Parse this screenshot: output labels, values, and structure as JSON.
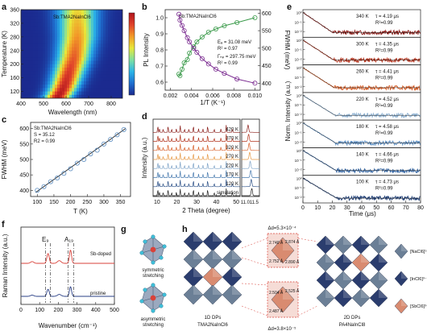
{
  "panel_letters": [
    "a",
    "b",
    "c",
    "d",
    "e",
    "f",
    "g",
    "h"
  ],
  "chart_data": [
    {
      "panel": "a",
      "type": "heatmap",
      "annotation": "Sb:TMA2NaInCl6",
      "xlabel": "Wavelength (nm)",
      "ylabel": "Temperature (K)",
      "xlim": [
        400,
        850
      ],
      "ylim": [
        100,
        360
      ],
      "xticks": [
        400,
        500,
        600,
        700,
        800
      ],
      "yticks": [
        120,
        160,
        200,
        240,
        280,
        320,
        360
      ],
      "peak_nm": [
        560,
        580,
        595,
        605,
        615,
        625,
        635,
        640,
        645,
        650,
        650,
        650,
        650,
        650
      ],
      "peak_T": [
        100,
        120,
        140,
        160,
        180,
        200,
        220,
        240,
        260,
        280,
        300,
        320,
        340,
        360
      ],
      "colormap": [
        "#1b2a8f",
        "#1e6fd0",
        "#2bb5e8",
        "#7fe0a0",
        "#e8e83a",
        "#f29a28",
        "#e0412a",
        "#b0141c"
      ]
    },
    {
      "panel": "b",
      "type": "scatter",
      "annotation": "Sb:TMA2NaInCl6",
      "xlabel": "1/T (K⁻¹)",
      "ylabel": "PL Intensity",
      "ylabel_right": "FWHM (meV)",
      "xlim": [
        0.0015,
        0.0105
      ],
      "ylim": [
        0.55,
        1.05
      ],
      "ylim_right": [
        380,
        610
      ],
      "xticks": [
        "0.002",
        "0.004",
        "0.006",
        "0.008",
        "0.010"
      ],
      "yticks": [
        "0.6",
        "0.7",
        "0.8",
        "0.9",
        "1.0"
      ],
      "yticks_right": [
        "400",
        "450",
        "500",
        "550",
        "600"
      ],
      "fit_left": [
        "Eₐ = 31.08 meV",
        "R² = 0.97"
      ],
      "fit_right": [
        "Γₙₚ = 297.75 meV",
        "R² = 0.99"
      ],
      "series": [
        {
          "name": "PL Intensity",
          "axis": "left",
          "color": "#3a9a4a",
          "x": [
            0.0028,
            0.0029,
            0.0031,
            0.0033,
            0.0036,
            0.0038,
            0.0042,
            0.0045,
            0.005,
            0.0056,
            0.0063,
            0.0071,
            0.0083,
            0.01
          ],
          "y": [
            0.65,
            0.64,
            0.68,
            0.72,
            0.74,
            0.78,
            0.82,
            0.85,
            0.88,
            0.91,
            0.93,
            0.95,
            0.97,
            1.0
          ]
        },
        {
          "name": "FWHM",
          "axis": "right",
          "color": "#7a2a90",
          "x": [
            0.0028,
            0.0029,
            0.0031,
            0.0033,
            0.0036,
            0.0038,
            0.0042,
            0.0045,
            0.005,
            0.0056,
            0.0063,
            0.0071,
            0.0083,
            0.01
          ],
          "y": [
            597,
            580,
            565,
            550,
            530,
            518,
            500,
            488,
            470,
            455,
            440,
            428,
            412,
            400
          ]
        }
      ]
    },
    {
      "panel": "c",
      "type": "scatter",
      "annotation": [
        "Sb:TMA2NaInCl6",
        "S = 35.12",
        "R2 = 0.99"
      ],
      "xlabel": "T (K)",
      "ylabel": "FWHM (meV)",
      "xlim": [
        80,
        380
      ],
      "ylim": [
        380,
        620
      ],
      "xticks": [
        100,
        150,
        200,
        250,
        300,
        350
      ],
      "yticks": [
        400,
        450,
        500,
        550,
        600
      ],
      "x": [
        100,
        120,
        140,
        160,
        180,
        200,
        220,
        240,
        260,
        280,
        300,
        320,
        340,
        360
      ],
      "y": [
        400,
        412,
        428,
        440,
        455,
        470,
        488,
        500,
        518,
        530,
        550,
        565,
        580,
        597
      ]
    },
    {
      "panel": "d",
      "type": "line",
      "xlabel": "2 Theta (degree)",
      "ylabel": "Intensity (a.u.)",
      "xticks": [
        10,
        20,
        30,
        40,
        50
      ],
      "xticks_inset": [
        "11.0",
        "11.5"
      ],
      "series": [
        {
          "name": "420 K",
          "color": "#8a1c18"
        },
        {
          "name": "370 K",
          "color": "#b3341e"
        },
        {
          "name": "320 K",
          "color": "#d8602a"
        },
        {
          "name": "270 K",
          "color": "#e69a48"
        },
        {
          "name": "220 K",
          "color": "#7fa4c8"
        },
        {
          "name": "170 K",
          "color": "#4a7cb0"
        },
        {
          "name": "120 K",
          "color": "#2a4f86"
        },
        {
          "name": "simulation",
          "color": "#222222"
        }
      ],
      "peaks": [
        10.4,
        11.2,
        13.1,
        15.6,
        17.4,
        19.8,
        21.7,
        23.9,
        26.1,
        28.4,
        31.0,
        33.2,
        35.6,
        38.9,
        42.3,
        45.0,
        48.1
      ]
    },
    {
      "panel": "e",
      "type": "line",
      "xlabel": "Time (μs)",
      "ylabel": "Norm. Intensity (a.u.)",
      "xlim": [
        0,
        80
      ],
      "xticks": [
        0,
        10,
        20,
        30,
        40,
        50,
        60,
        70,
        80
      ],
      "yticks": [
        "10⁰",
        "10⁻¹",
        "10⁻²"
      ],
      "series": [
        {
          "name": "340 K",
          "tau": "τ = 4.19 μs",
          "r2": "R²=0.99",
          "tau_us": 4.19,
          "color": "#8a1c18"
        },
        {
          "name": "300 K",
          "tau": "τ = 4.35 μs",
          "r2": "R²=0.99",
          "tau_us": 4.35,
          "color": "#b3341e"
        },
        {
          "name": "260 K",
          "tau": "τ = 4.41 μs",
          "r2": "R²=0.99",
          "tau_us": 4.41,
          "color": "#d8602a"
        },
        {
          "name": "220 K",
          "tau": "τ = 4.52 μs",
          "r2": "R²=0.99",
          "tau_us": 4.52,
          "color": "#8fb3d4"
        },
        {
          "name": "180 K",
          "tau": "τ = 4.58 μs",
          "r2": "R²=0.99",
          "tau_us": 4.58,
          "color": "#5a8cc0"
        },
        {
          "name": "140 K",
          "tau": "τ = 4.66 μs",
          "r2": "R²=0.99",
          "tau_us": 4.66,
          "color": "#3a6aa6"
        },
        {
          "name": "100 K",
          "tau": "τ = 4.73 μs",
          "r2": "R²=0.99",
          "tau_us": 4.73,
          "color": "#1f3f78"
        }
      ]
    },
    {
      "panel": "f",
      "type": "line",
      "xlabel": "Wavenumber (cm⁻¹)",
      "ylabel": "Raman Intensity (a.u.)",
      "xlim": [
        0,
        500
      ],
      "xticks": [
        0,
        100,
        200,
        300,
        400,
        500
      ],
      "band_labels": [
        "E₉",
        "A₁₉"
      ],
      "series": [
        {
          "name": "Sb-doped",
          "color": "#d9423a"
        },
        {
          "name": "pristine",
          "color": "#2a3f86"
        }
      ]
    }
  ],
  "panel_g": {
    "labels": [
      "symmetric stretching",
      "asymmetric stretching"
    ]
  },
  "panel_h": {
    "delta_top": "Δd=5.3×10⁻⁴",
    "delta_bottom": "Δd=3.8×10⁻⁵",
    "bonds_top": [
      "2.740 Å",
      "2.874 Å",
      "2.752 Å",
      "2.890 Å"
    ],
    "bonds_bottom": [
      "2.504 Å",
      "2.525 Å",
      "2.487 Å"
    ],
    "label_1d": "1D DPs",
    "name_1d": "TMA2NaInCl6",
    "label_2d": "2D DPs",
    "name_2d": "PA4NaInCl8",
    "legend": [
      "[NaCl6]⁵⁻",
      "[InCl6]³⁻",
      "[SbCl6]³⁻"
    ],
    "colors": {
      "na": "#6b7f96",
      "in": "#2b3d6e",
      "sb": "#d98b70",
      "frame": "#d9423a"
    }
  }
}
